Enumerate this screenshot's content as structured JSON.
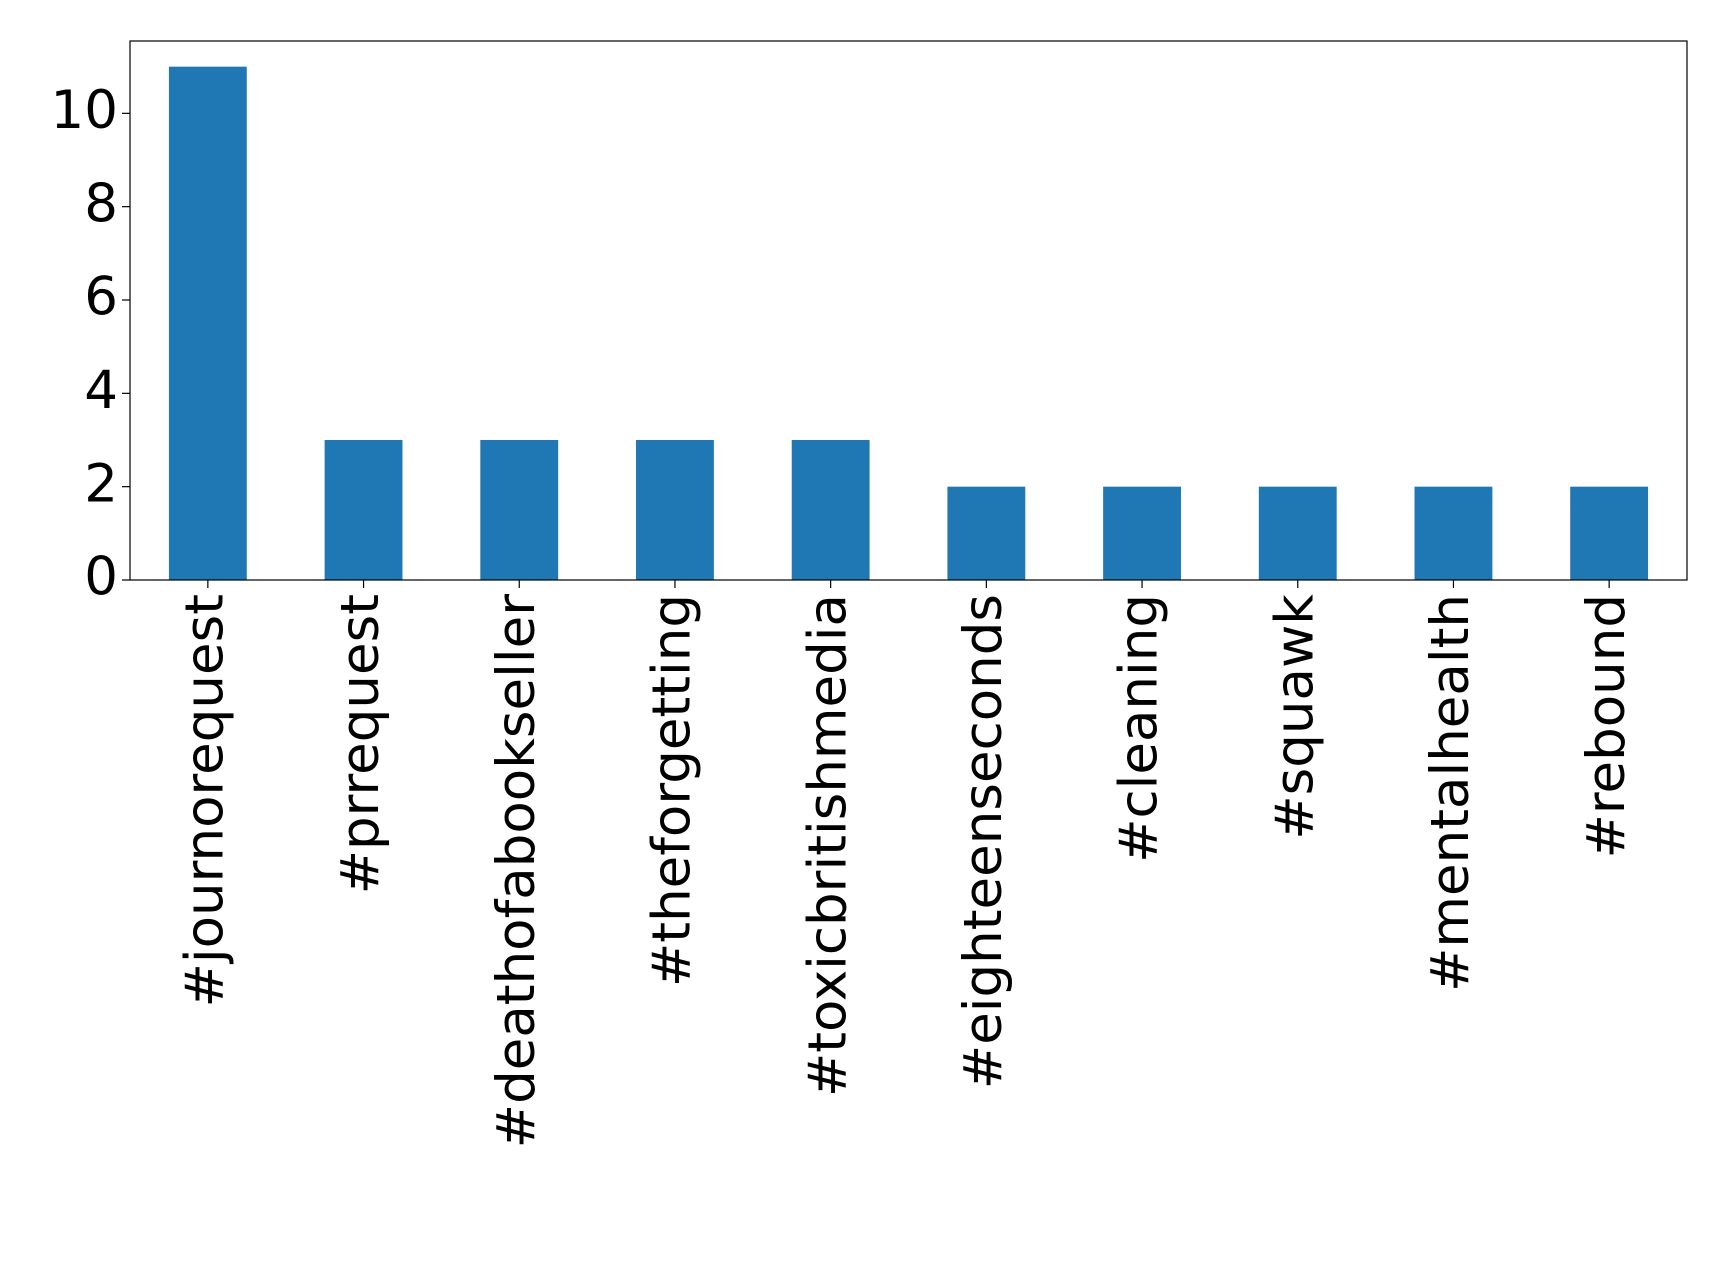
{
  "chart_data": {
    "type": "bar",
    "categories": [
      "#journorequest",
      "#prrequest",
      "#deathofabookseller",
      "#theforgetting",
      "#toxicbritishmedia",
      "#eighteenseconds",
      "#cleaning",
      "#squawk",
      "#mentalhealth",
      "#rebound"
    ],
    "values": [
      11,
      3,
      3,
      3,
      3,
      2,
      2,
      2,
      2,
      2
    ],
    "color": "#1f77b4",
    "ylim": [
      0,
      11.55
    ],
    "yticks": [
      0,
      2,
      4,
      6,
      8,
      10
    ],
    "grid": false
  }
}
